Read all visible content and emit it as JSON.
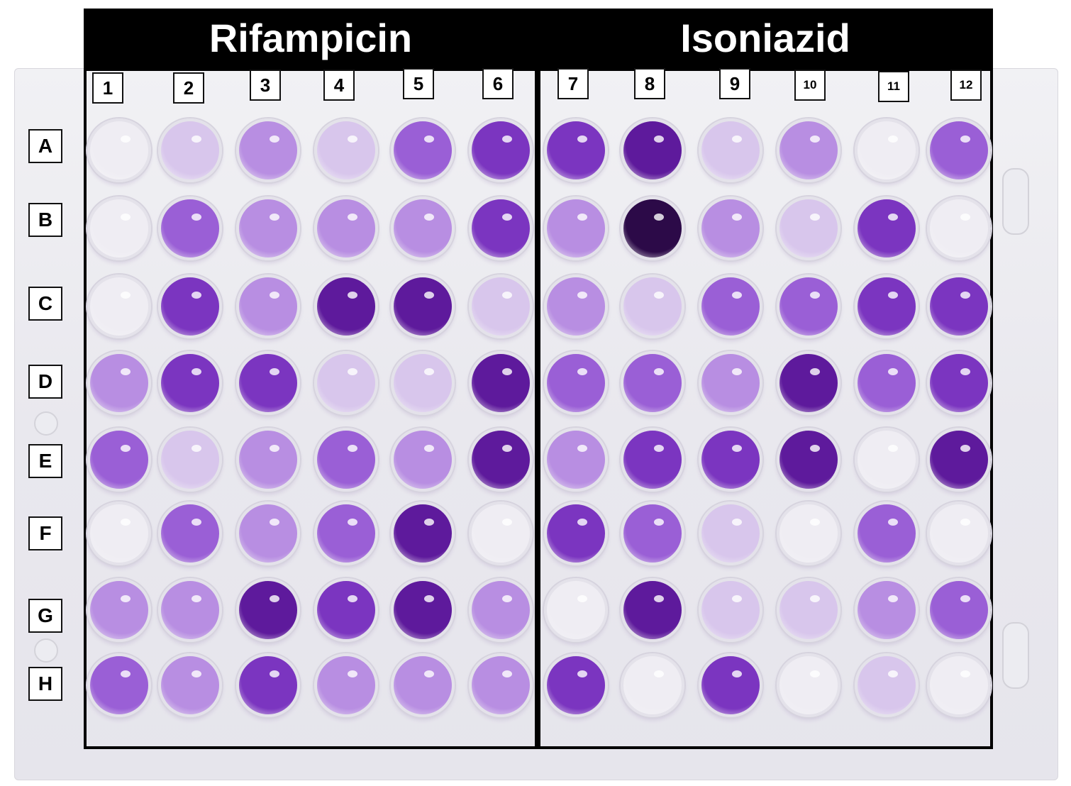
{
  "drugs": {
    "left": "Rifampicin",
    "right": "Isoniazid"
  },
  "columns": [
    "1",
    "2",
    "3",
    "4",
    "5",
    "6",
    "7",
    "8",
    "9",
    "10",
    "11",
    "12"
  ],
  "rows": [
    "A",
    "B",
    "C",
    "D",
    "E",
    "F",
    "G",
    "H"
  ],
  "colors": {
    "clear": "#efedf3",
    "faint": "#d8c6ec",
    "light": "#b88ee2",
    "medium": "#9a5fd6",
    "strong": "#7b35c0",
    "deep": "#5e1a9c",
    "darkest": "#2c0a48"
  },
  "wells": [
    [
      "clear",
      "faint",
      "light",
      "faint",
      "medium",
      "strong",
      "strong",
      "deep",
      "faint",
      "light",
      "clear",
      "medium"
    ],
    [
      "clear",
      "medium",
      "light",
      "light",
      "light",
      "strong",
      "light",
      "darkest",
      "light",
      "faint",
      "strong",
      "clear"
    ],
    [
      "clear",
      "strong",
      "light",
      "deep",
      "deep",
      "faint",
      "light",
      "faint",
      "medium",
      "medium",
      "strong",
      "strong"
    ],
    [
      "light",
      "strong",
      "strong",
      "faint",
      "faint",
      "deep",
      "medium",
      "medium",
      "light",
      "deep",
      "medium",
      "strong"
    ],
    [
      "medium",
      "faint",
      "light",
      "medium",
      "light",
      "deep",
      "light",
      "strong",
      "strong",
      "deep",
      "clear",
      "deep"
    ],
    [
      "clear",
      "medium",
      "light",
      "medium",
      "deep",
      "clear",
      "strong",
      "medium",
      "faint",
      "clear",
      "medium",
      "clear"
    ],
    [
      "light",
      "light",
      "deep",
      "strong",
      "deep",
      "light",
      "clear",
      "deep",
      "faint",
      "faint",
      "light",
      "medium"
    ],
    [
      "medium",
      "light",
      "strong",
      "light",
      "light",
      "light",
      "strong",
      "clear",
      "strong",
      "clear",
      "faint",
      "clear"
    ]
  ]
}
